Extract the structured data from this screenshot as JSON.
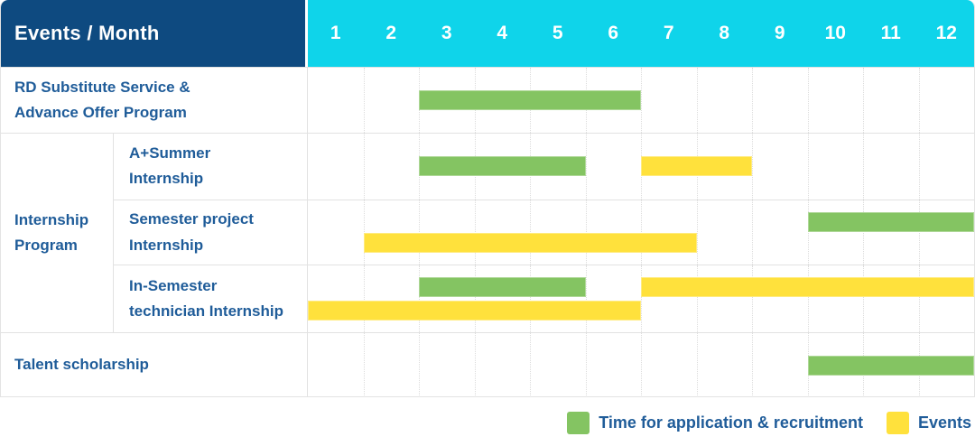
{
  "header": {
    "title": "Events / Month",
    "months": [
      "1",
      "2",
      "3",
      "4",
      "5",
      "6",
      "7",
      "8",
      "9",
      "10",
      "11",
      "12"
    ]
  },
  "colors": {
    "header_bg": "#0e4a80",
    "month_header_bg": "#0fd4ea",
    "header_text": "#ffffff",
    "label_text": "#1f5c99",
    "recruitment": "#84c462",
    "event": "#ffe13c",
    "grid_line": "#e2e2e2"
  },
  "chart_data": {
    "type": "gantt",
    "title": "Events / Month",
    "x_axis": {
      "unit": "month",
      "range": [
        1,
        12
      ],
      "ticks": [
        "1",
        "2",
        "3",
        "4",
        "5",
        "6",
        "7",
        "8",
        "9",
        "10",
        "11",
        "12"
      ]
    },
    "rows": [
      {
        "label": "RD Substitute Service &\nAdvance Offer Program",
        "group": "",
        "lanes": [
          [
            {
              "start": 3,
              "end": 6,
              "kind": "recruitment"
            }
          ]
        ]
      },
      {
        "label": "A+Summer\nInternship",
        "group": "Internship\nProgram",
        "lanes": [
          [
            {
              "start": 3,
              "end": 5,
              "kind": "recruitment"
            },
            {
              "start": 7,
              "end": 8,
              "kind": "event"
            }
          ]
        ]
      },
      {
        "label": "Semester project\nInternship",
        "group": "Internship Program",
        "lanes": [
          [
            {
              "start": 10,
              "end": 12,
              "kind": "recruitment"
            }
          ],
          [
            {
              "start": 2,
              "end": 7,
              "kind": "event"
            }
          ]
        ]
      },
      {
        "label": "In-Semester\ntechnician Internship",
        "group": "Internship Program",
        "lanes": [
          [
            {
              "start": 3,
              "end": 5,
              "kind": "recruitment"
            },
            {
              "start": 7,
              "end": 12,
              "kind": "event"
            }
          ],
          [
            {
              "start": 1,
              "end": 6,
              "kind": "event"
            }
          ]
        ]
      },
      {
        "label": "Talent scholarship",
        "group": "",
        "lanes": [
          [
            {
              "start": 10,
              "end": 12,
              "kind": "recruitment"
            }
          ]
        ]
      }
    ],
    "legend": [
      {
        "kind": "recruitment",
        "label": "Time for application & recruitment"
      },
      {
        "kind": "event",
        "label": "Events"
      }
    ]
  }
}
